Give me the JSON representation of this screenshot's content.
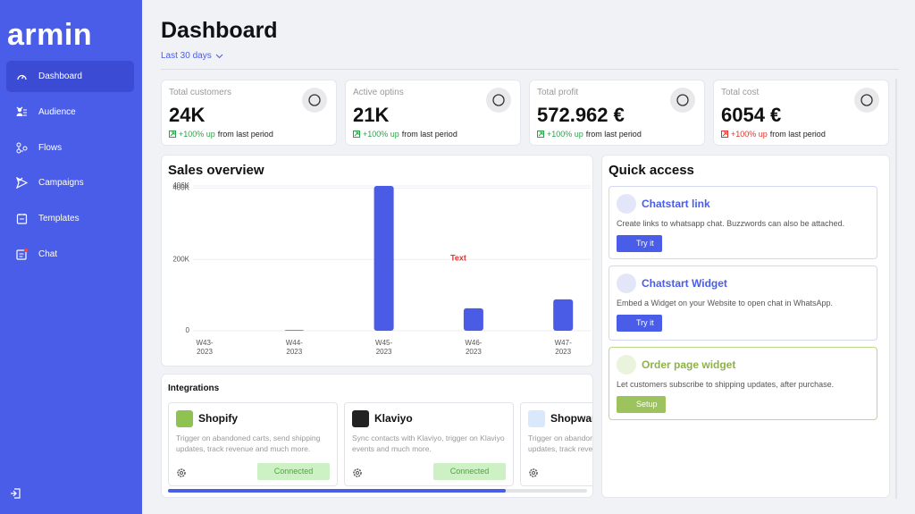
{
  "sidebar": {
    "logo": "armin",
    "menu": [
      "Dashboard",
      "Audience",
      "Flows",
      "Campaigns",
      "Templates",
      "Chat"
    ]
  },
  "header": {
    "title": "Dashboard",
    "period": "Last 30 days"
  },
  "stats": [
    {
      "label": "Total customers",
      "value": "24K",
      "change": "+100% up",
      "note": "from last period"
    },
    {
      "label": "Active optins",
      "value": "21K",
      "change": "+100% up",
      "note": "from last period"
    },
    {
      "label": "Total profit",
      "value": "572.962 €",
      "change": "+100% up",
      "note": "from last period"
    },
    {
      "label": "Total cost",
      "value": "6054 €",
      "change": "+100% up",
      "note": "from last period"
    }
  ],
  "sales_overview": {
    "title": "Sales overview",
    "chart_data": {
      "type": "bar",
      "categories": [
        "W43-2023",
        "W44-2023",
        "W45-2023",
        "W46-2023",
        "W47-2023"
      ],
      "values": [
        0,
        2000,
        406000,
        63000,
        88000
      ],
      "color": "#4a5be6",
      "ylim": [
        0,
        406000
      ],
      "yticks": [
        0,
        {
          "value": 200000,
          "label": "200K"
        },
        {
          "value": 400000,
          "label": "400K"
        },
        {
          "value": 406000,
          "label": "406K"
        }
      ],
      "grid": true,
      "annotation": "Text"
    }
  },
  "quick_access": {
    "title": "Quick access",
    "items": [
      {
        "title": "Chatstart link",
        "description": "Create links to whatsapp chat. Buzzwords can also be attached.",
        "button": "Try it"
      },
      {
        "title": "Chatstart Widget",
        "description": "Embed a Widget on your Website to open chat in WhatsApp.",
        "button": "Try it"
      },
      {
        "title": "Order page widget",
        "description": "Let customers subscribe to shipping updates, after purchase.",
        "button": "Setup"
      }
    ]
  },
  "integrations": {
    "title": "Integrations",
    "items": [
      {
        "name": "Shopify",
        "description": "Trigger on abandoned carts, send shipping updates, track revenue and much more.",
        "status": "Connected"
      },
      {
        "name": "Klaviyo",
        "description": "Sync contacts with Klaviyo, trigger on Klaviyo events and much more.",
        "status": "Connected"
      },
      {
        "name": "Shopware",
        "description": "Trigger on abandoned carts, send shipping updates, track revenue and much more."
      }
    ]
  }
}
